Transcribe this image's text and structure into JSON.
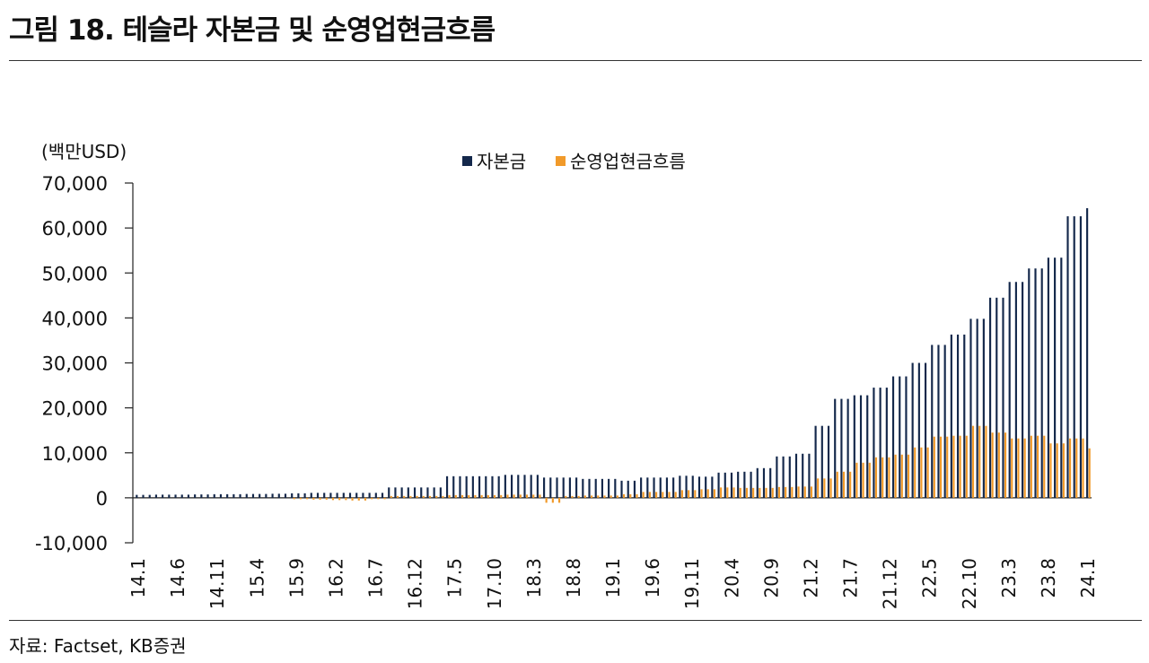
{
  "title": "그림 18. 테슬라 자본금 및 순영업현금흐름",
  "source": "자료: Factset, KB증권",
  "chart_data": {
    "type": "bar",
    "unit_label": "(백만USD)",
    "ylim": [
      -10000,
      70000
    ],
    "y_ticks": [
      -10000,
      0,
      10000,
      20000,
      30000,
      40000,
      50000,
      60000,
      70000
    ],
    "y_tick_labels": [
      "-10,000",
      "0",
      "10,000",
      "20,000",
      "30,000",
      "40,000",
      "50,000",
      "60,000",
      "70,000"
    ],
    "grid": false,
    "legend_position": "top-center",
    "x_labels": [
      "14.1",
      "14.6",
      "14.11",
      "15.4",
      "15.9",
      "16.2",
      "16.7",
      "16.12",
      "17.5",
      "17.10",
      "18.3",
      "18.8",
      "19.1",
      "19.6",
      "19.11",
      "20.4",
      "20.9",
      "21.2",
      "21.7",
      "21.12",
      "22.5",
      "22.10",
      "23.3",
      "23.8",
      "24.1"
    ],
    "series": [
      {
        "name": "자본금",
        "color": "#14284b",
        "values": [
          650,
          650,
          650,
          700,
          700,
          700,
          700,
          700,
          700,
          750,
          750,
          750,
          800,
          800,
          800,
          800,
          800,
          850,
          850,
          850,
          850,
          900,
          900,
          900,
          1000,
          1000,
          1000,
          1100,
          1100,
          1100,
          1100,
          1100,
          1100,
          1100,
          1100,
          1100,
          1100,
          1100,
          1100,
          2300,
          2300,
          2300,
          2300,
          2300,
          2300,
          2300,
          2300,
          2300,
          4800,
          4800,
          4800,
          4800,
          4800,
          4800,
          4800,
          4800,
          4800,
          5100,
          5100,
          5100,
          5100,
          5100,
          5100,
          4500,
          4500,
          4500,
          4500,
          4500,
          4500,
          4200,
          4200,
          4200,
          4200,
          4200,
          4200,
          3800,
          3800,
          3800,
          4500,
          4500,
          4500,
          4500,
          4500,
          4500,
          4900,
          4900,
          4900,
          4700,
          4700,
          4700,
          5600,
          5600,
          5600,
          5800,
          5800,
          5800,
          6600,
          6600,
          6600,
          9200,
          9200,
          9200,
          9800,
          9800,
          9800,
          16000,
          16000,
          16000,
          22000,
          22000,
          22000,
          22800,
          22800,
          22800,
          24500,
          24500,
          24500,
          27000,
          27000,
          27000,
          30000,
          30000,
          30000,
          34000,
          34000,
          34000,
          36300,
          36300,
          36300,
          39800,
          39800,
          39800,
          44500,
          44500,
          44500,
          48000,
          48000,
          48000,
          51000,
          51000,
          51000,
          53400,
          53400,
          53400,
          62600,
          62600,
          62600,
          64400
        ]
      },
      {
        "name": "순영업현금흐름",
        "color": "#f19a2a",
        "values": [
          0,
          0,
          0,
          0,
          0,
          0,
          0,
          0,
          0,
          0,
          0,
          0,
          0,
          0,
          0,
          0,
          0,
          0,
          0,
          0,
          0,
          0,
          0,
          0,
          -300,
          -300,
          -300,
          -400,
          -400,
          -400,
          -500,
          -500,
          -500,
          -600,
          -600,
          -600,
          -300,
          -300,
          -300,
          400,
          400,
          400,
          400,
          400,
          400,
          400,
          400,
          400,
          600,
          600,
          600,
          600,
          600,
          600,
          600,
          600,
          600,
          700,
          700,
          700,
          700,
          700,
          700,
          -1100,
          -1100,
          -1100,
          400,
          400,
          400,
          500,
          500,
          500,
          500,
          500,
          500,
          800,
          800,
          800,
          1300,
          1300,
          1300,
          1300,
          1300,
          1300,
          1700,
          1700,
          1700,
          1900,
          1900,
          1900,
          2300,
          2300,
          2300,
          2200,
          2200,
          2200,
          2200,
          2200,
          2200,
          2400,
          2400,
          2400,
          2500,
          2500,
          2500,
          4300,
          4300,
          4300,
          5800,
          5800,
          5800,
          7800,
          7800,
          7800,
          9000,
          9000,
          9000,
          9600,
          9600,
          9600,
          11200,
          11200,
          11200,
          13600,
          13600,
          13600,
          13800,
          13800,
          13800,
          16000,
          16000,
          16000,
          14500,
          14500,
          14500,
          13200,
          13200,
          13200,
          13800,
          13800,
          13800,
          12100,
          12100,
          12100,
          13200,
          13200,
          13200,
          11000
        ]
      }
    ]
  }
}
